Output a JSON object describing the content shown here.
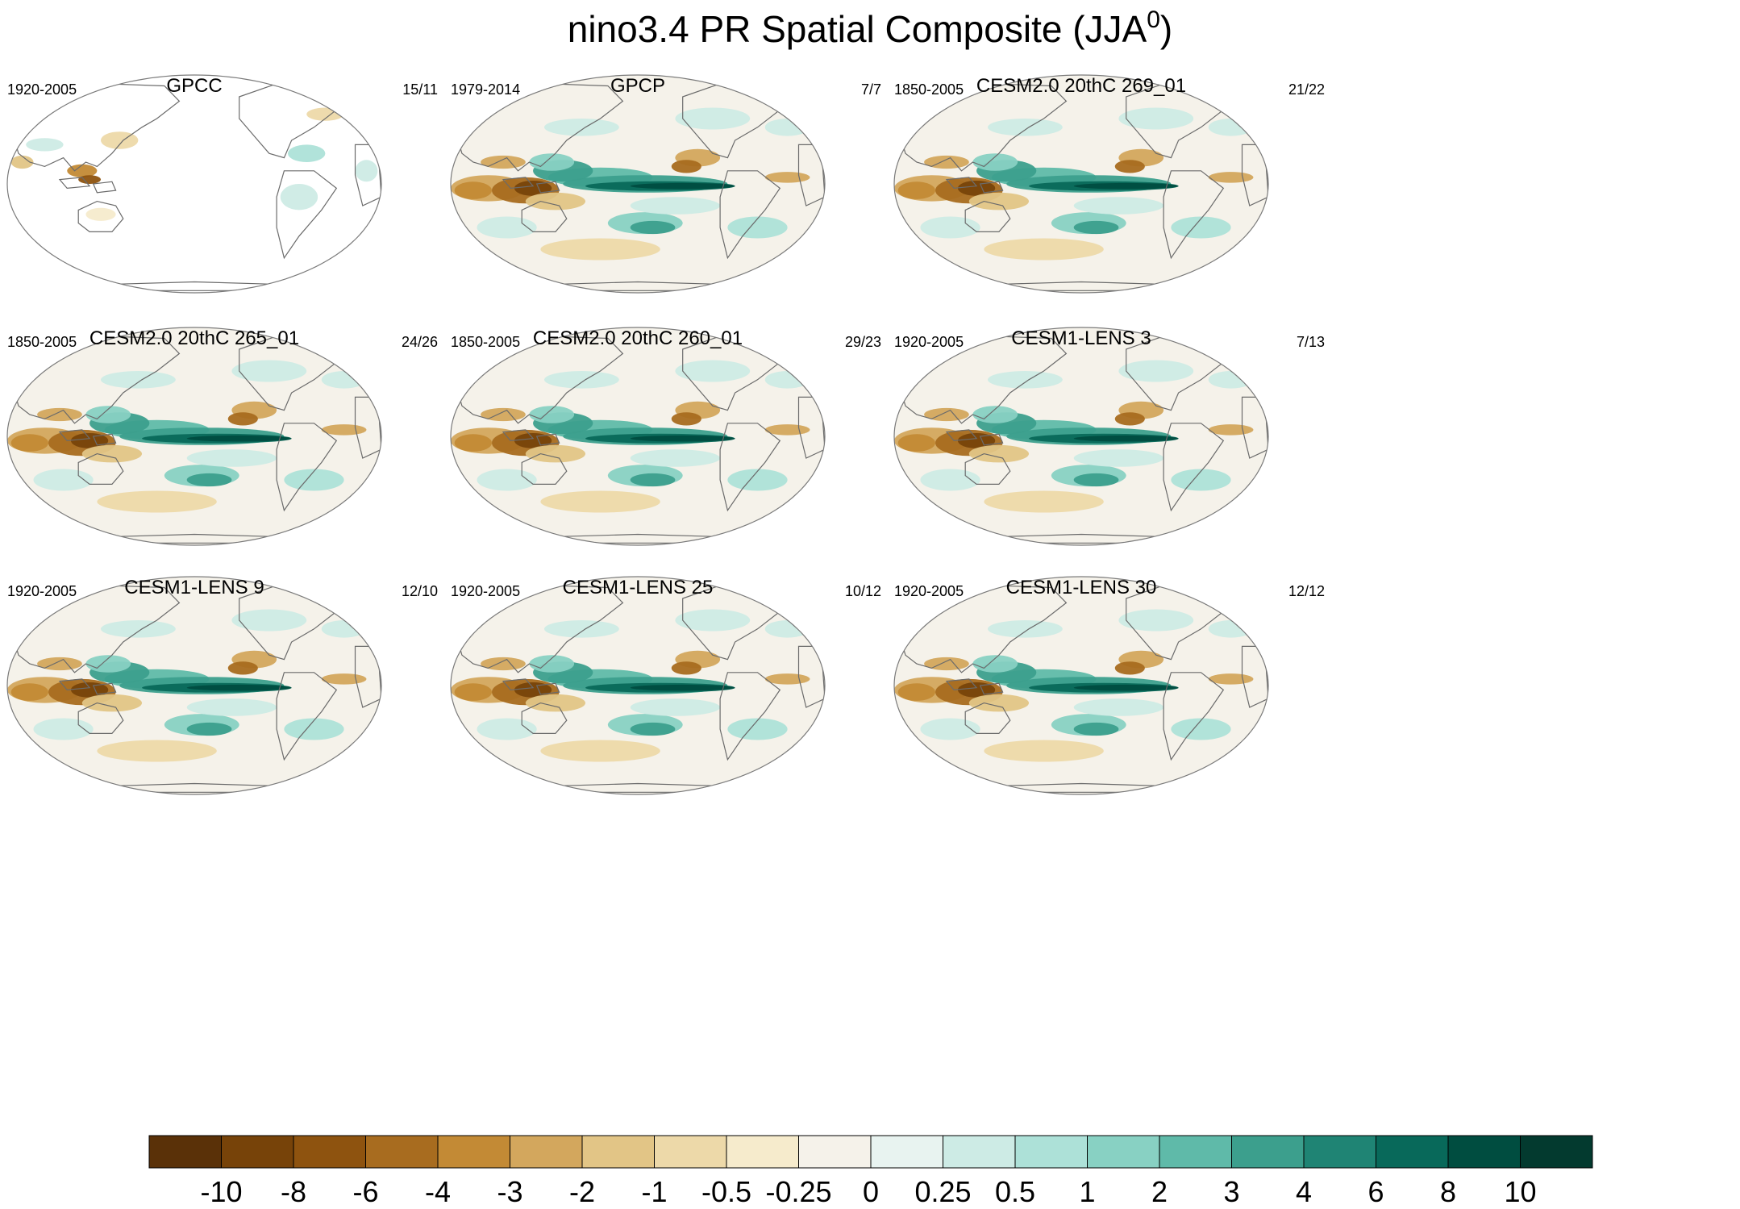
{
  "chart_data": {
    "type": "heatmap",
    "title": "nino3.4 PR Spatial Composite (JJA",
    "title_superscript": "0",
    "title_close": ")",
    "projection": "Robinson, Pacific-centred global maps",
    "panels": [
      {
        "name": "GPCC",
        "period": "1920-2005",
        "count": "15/11",
        "field": "land"
      },
      {
        "name": "GPCP",
        "period": "1979-2014",
        "count": "7/7",
        "field": "full"
      },
      {
        "name": "CESM2.0 20thC 269_01",
        "period": "1850-2005",
        "count": "21/22",
        "field": "full"
      },
      {
        "name": "CESM2.0 20thC 265_01",
        "period": "1850-2005",
        "count": "24/26",
        "field": "full"
      },
      {
        "name": "CESM2.0 20thC 260_01",
        "period": "1850-2005",
        "count": "29/23",
        "field": "full"
      },
      {
        "name": "CESM1-LENS 3",
        "period": "1920-2005",
        "count": "7/13",
        "field": "full"
      },
      {
        "name": "CESM1-LENS 9",
        "period": "1920-2005",
        "count": "12/10",
        "field": "full"
      },
      {
        "name": "CESM1-LENS 25",
        "period": "1920-2005",
        "count": "10/12",
        "field": "full"
      },
      {
        "name": "CESM1-LENS 30",
        "period": "1920-2005",
        "count": "12/12",
        "field": "full"
      }
    ],
    "colorbar": {
      "labels": [
        "-10",
        "-8",
        "-6",
        "-4",
        "-3",
        "-2",
        "-1",
        "-0.5",
        "-0.25",
        "0",
        "0.25",
        "0.5",
        "1",
        "2",
        "3",
        "4",
        "6",
        "8",
        "10"
      ],
      "colors": [
        "#5a3108",
        "#774309",
        "#8e530f",
        "#a86c1f",
        "#c38a35",
        "#d3a75d",
        "#e2c586",
        "#edd9a9",
        "#f6ebcc",
        "#f5f2ea",
        "#e8f3f0",
        "#cdebe5",
        "#ade1d8",
        "#88d1c3",
        "#5fbaa9",
        "#3c9f8d",
        "#1f8474",
        "#08695a",
        "#004d40",
        "#033a2f"
      ]
    }
  }
}
